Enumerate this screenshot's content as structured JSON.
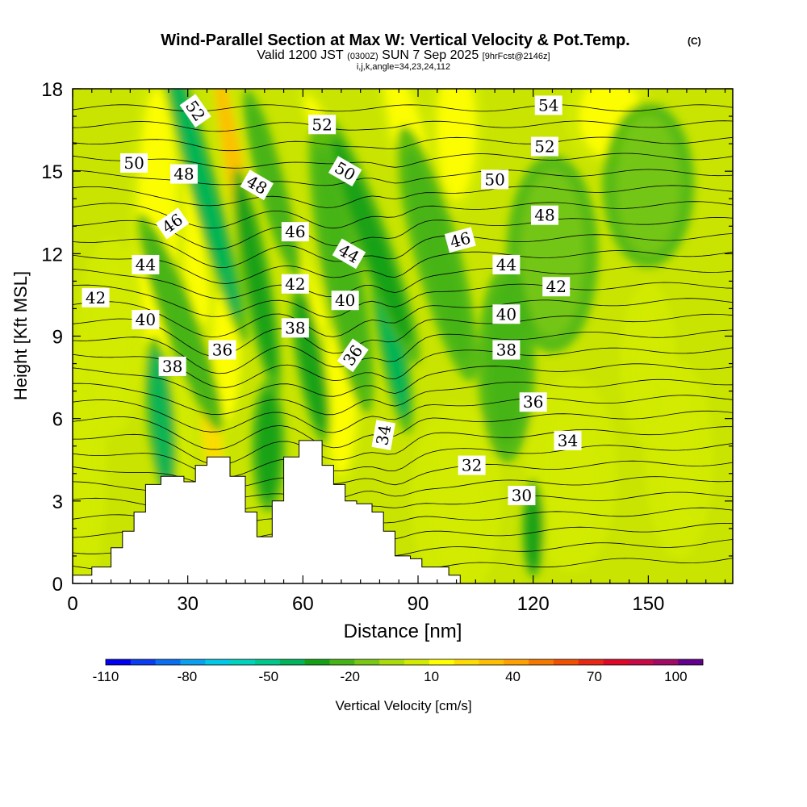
{
  "header": {
    "title": "Wind-Parallel Section at Max W: Vertical Velocity & Pot.Temp.",
    "title_mark": "(C)",
    "subtitle_pre": "Valid 1200 JST",
    "subtitle_utc": "(0300Z)",
    "subtitle_date": "SUN 7 Sep 2025",
    "subtitle_fcst": "[9hrFcst@2146z]",
    "indices": "i,j,k,angle=34,23,24,112"
  },
  "chart_data": {
    "type": "heatmap",
    "xlabel": "Distance [nm]",
    "ylabel": "Height [Kft MSL]",
    "xlim": [
      0,
      172
    ],
    "ylim": [
      0,
      18
    ],
    "xticks": [
      0,
      30,
      60,
      90,
      120,
      150
    ],
    "yticks": [
      0,
      3,
      6,
      9,
      12,
      15,
      18
    ],
    "shaded_field": "Vertical Velocity [cm/s]",
    "contour_field": "Potential temperature (C)",
    "colorbar": {
      "label": "Vertical Velocity [cm/s]",
      "tick_labels": [
        "-110",
        "-80",
        "-50",
        "-20",
        "10",
        "40",
        "70",
        "100"
      ],
      "bounds": [
        -110,
        110
      ],
      "step": 10,
      "colors": [
        "#0000ee",
        "#0a3cf0",
        "#0a6ef0",
        "#0aa0f0",
        "#00c8e6",
        "#00d2be",
        "#00c88c",
        "#00b45a",
        "#14a014",
        "#46b414",
        "#78c814",
        "#aadc0a",
        "#d2eb00",
        "#ffff00",
        "#ffdc00",
        "#ffbe00",
        "#ffa000",
        "#f57800",
        "#f05000",
        "#e62814",
        "#dc0a28",
        "#c80a46",
        "#a00a64",
        "#64008c"
      ]
    },
    "terrain": [
      [
        0,
        0.3
      ],
      [
        5,
        0.3
      ],
      [
        5,
        0.6
      ],
      [
        10,
        0.6
      ],
      [
        10,
        1.3
      ],
      [
        13,
        1.3
      ],
      [
        13,
        1.9
      ],
      [
        16,
        1.9
      ],
      [
        16,
        2.6
      ],
      [
        19,
        2.6
      ],
      [
        19,
        3.6
      ],
      [
        23,
        3.6
      ],
      [
        23,
        3.9
      ],
      [
        29,
        3.9
      ],
      [
        29,
        3.7
      ],
      [
        32,
        3.7
      ],
      [
        32,
        4.3
      ],
      [
        35,
        4.3
      ],
      [
        35,
        4.6
      ],
      [
        41,
        4.6
      ],
      [
        41,
        3.9
      ],
      [
        45,
        3.9
      ],
      [
        45,
        2.6
      ],
      [
        48,
        2.6
      ],
      [
        48,
        1.7
      ],
      [
        52,
        1.7
      ],
      [
        52,
        3.0
      ],
      [
        55,
        3.0
      ],
      [
        55,
        4.6
      ],
      [
        59,
        4.6
      ],
      [
        59,
        5.2
      ],
      [
        65,
        5.2
      ],
      [
        65,
        4.3
      ],
      [
        68,
        4.3
      ],
      [
        68,
        3.6
      ],
      [
        71,
        3.6
      ],
      [
        71,
        3.0
      ],
      [
        74,
        3.0
      ],
      [
        74,
        2.9
      ],
      [
        78,
        2.9
      ],
      [
        78,
        2.6
      ],
      [
        81,
        2.6
      ],
      [
        81,
        1.9
      ],
      [
        84,
        1.9
      ],
      [
        84,
        1.0
      ],
      [
        88,
        1.0
      ],
      [
        88,
        0.9
      ],
      [
        91,
        0.9
      ],
      [
        91,
        0.6
      ],
      [
        98,
        0.6
      ],
      [
        98,
        0.3
      ],
      [
        101,
        0.3
      ],
      [
        101,
        0
      ],
      [
        0,
        0
      ]
    ],
    "updrafts": [
      {
        "x": 43,
        "y": 14.5,
        "w": 2.5,
        "h": 4.5,
        "tilt": -10,
        "value": 40
      },
      {
        "x": 30,
        "y": 13.0,
        "w": 3,
        "h": 4.0,
        "tilt": -10,
        "value": 25
      },
      {
        "x": 36,
        "y": 6.0,
        "w": 2.5,
        "h": 3.0,
        "tilt": -5,
        "value": 35
      },
      {
        "x": 40,
        "y": 8.5,
        "w": 3.5,
        "h": 2.5,
        "tilt": 0,
        "value": 25
      },
      {
        "x": 22,
        "y": 13.0,
        "w": 5,
        "h": 5.0,
        "tilt": 0,
        "value": 20
      },
      {
        "x": 60,
        "y": 11.0,
        "w": 3,
        "h": 4.0,
        "tilt": -15,
        "value": 25
      },
      {
        "x": 55,
        "y": 13.5,
        "w": 2.5,
        "h": 3.0,
        "tilt": -15,
        "value": 20
      },
      {
        "x": 70,
        "y": 15.0,
        "w": 3,
        "h": 3.0,
        "tilt": -25,
        "value": 20
      },
      {
        "x": 88,
        "y": 16.0,
        "w": 4,
        "h": 3.0,
        "tilt": -15,
        "value": 25
      },
      {
        "x": 70,
        "y": 7.0,
        "w": 4,
        "h": 3.0,
        "tilt": 0,
        "value": 20
      },
      {
        "x": 100,
        "y": 16.5,
        "w": 5,
        "h": 2.5,
        "tilt": 0,
        "value": 20
      },
      {
        "x": 140,
        "y": 17.0,
        "w": 8,
        "h": 1.5,
        "tilt": 0,
        "value": 20
      },
      {
        "x": 130,
        "y": 4.0,
        "w": 8,
        "h": 3.0,
        "tilt": 0,
        "value": 15
      },
      {
        "x": 158,
        "y": 4.5,
        "w": 6,
        "h": 3.0,
        "tilt": 0,
        "value": 15
      },
      {
        "x": 150,
        "y": 8.0,
        "w": 5,
        "h": 2.5,
        "tilt": 0,
        "value": 15
      },
      {
        "x": 10,
        "y": 9.0,
        "w": 6,
        "h": 3.0,
        "tilt": 0,
        "value": 15
      },
      {
        "x": 3,
        "y": 4.5,
        "w": 4,
        "h": 4.0,
        "tilt": 0,
        "value": 15
      },
      {
        "x": 26,
        "y": 5.0,
        "w": 4,
        "h": 2.5,
        "tilt": 0,
        "value": 15
      },
      {
        "x": 100,
        "y": 3.0,
        "w": 8,
        "h": 3.0,
        "tilt": 0,
        "value": 10
      }
    ],
    "downdrafts": [
      {
        "x": 34,
        "y": 14.5,
        "w": 2.5,
        "h": 5.0,
        "tilt": -15,
        "value": -40
      },
      {
        "x": 23,
        "y": 6.0,
        "w": 2.5,
        "h": 2.5,
        "tilt": -5,
        "value": -40
      },
      {
        "x": 28,
        "y": 9.5,
        "w": 3,
        "h": 3.5,
        "tilt": -20,
        "value": -20
      },
      {
        "x": 48,
        "y": 11.0,
        "w": 2.5,
        "h": 3.5,
        "tilt": -10,
        "value": -25
      },
      {
        "x": 52,
        "y": 14.5,
        "w": 2.5,
        "h": 3.0,
        "tilt": -15,
        "value": -20
      },
      {
        "x": 51,
        "y": 5.0,
        "w": 3,
        "h": 2.0,
        "tilt": 0,
        "value": -30
      },
      {
        "x": 62,
        "y": 8.0,
        "w": 2.5,
        "h": 2.5,
        "tilt": -10,
        "value": -30
      },
      {
        "x": 70,
        "y": 11.5,
        "w": 3.5,
        "h": 4.5,
        "tilt": -10,
        "value": -20
      },
      {
        "x": 83,
        "y": 9.0,
        "w": 2.5,
        "h": 3.0,
        "tilt": -10,
        "value": -40
      },
      {
        "x": 78,
        "y": 12.5,
        "w": 3,
        "h": 4.0,
        "tilt": -20,
        "value": -25
      },
      {
        "x": 95,
        "y": 12.0,
        "w": 4,
        "h": 4.0,
        "tilt": -15,
        "value": -15
      },
      {
        "x": 120,
        "y": 2.0,
        "w": 2,
        "h": 1.5,
        "tilt": 0,
        "value": -30
      },
      {
        "x": 113,
        "y": 8.0,
        "w": 5,
        "h": 3.0,
        "tilt": 0,
        "value": -15
      },
      {
        "x": 125,
        "y": 12.0,
        "w": 8,
        "h": 3.0,
        "tilt": 0,
        "value": -10
      },
      {
        "x": 150,
        "y": 14.5,
        "w": 8,
        "h": 2.5,
        "tilt": 0,
        "value": -10
      }
    ],
    "contour_labels": [
      {
        "text": "52",
        "x": 32,
        "y": 17.2,
        "angle": 55
      },
      {
        "text": "52",
        "x": 65,
        "y": 16.7,
        "angle": 0
      },
      {
        "text": "54",
        "x": 124,
        "y": 17.4,
        "angle": 0
      },
      {
        "text": "52",
        "x": 123,
        "y": 15.9,
        "angle": 0
      },
      {
        "text": "50",
        "x": 16,
        "y": 15.3,
        "angle": 0
      },
      {
        "text": "48",
        "x": 29,
        "y": 14.9,
        "angle": 0
      },
      {
        "text": "48",
        "x": 48,
        "y": 14.5,
        "angle": 30
      },
      {
        "text": "50",
        "x": 71,
        "y": 15.0,
        "angle": 30
      },
      {
        "text": "50",
        "x": 110,
        "y": 14.7,
        "angle": 0
      },
      {
        "text": "48",
        "x": 123,
        "y": 13.4,
        "angle": 0
      },
      {
        "text": "46",
        "x": 26,
        "y": 13.1,
        "angle": -35
      },
      {
        "text": "46",
        "x": 58,
        "y": 12.8,
        "angle": 0
      },
      {
        "text": "44",
        "x": 72,
        "y": 12.0,
        "angle": 30
      },
      {
        "text": "46",
        "x": 101,
        "y": 12.5,
        "angle": -15
      },
      {
        "text": "44",
        "x": 19,
        "y": 11.6,
        "angle": 0
      },
      {
        "text": "44",
        "x": 113,
        "y": 11.6,
        "angle": 0
      },
      {
        "text": "42",
        "x": 6,
        "y": 10.4,
        "angle": 0
      },
      {
        "text": "42",
        "x": 58,
        "y": 10.9,
        "angle": 0
      },
      {
        "text": "42",
        "x": 126,
        "y": 10.8,
        "angle": 0
      },
      {
        "text": "40",
        "x": 19,
        "y": 9.6,
        "angle": 0
      },
      {
        "text": "40",
        "x": 71,
        "y": 10.3,
        "angle": 0
      },
      {
        "text": "40",
        "x": 113,
        "y": 9.8,
        "angle": 0
      },
      {
        "text": "38",
        "x": 58,
        "y": 9.3,
        "angle": 0
      },
      {
        "text": "36",
        "x": 39,
        "y": 8.5,
        "angle": 0
      },
      {
        "text": "36",
        "x": 73,
        "y": 8.3,
        "angle": -55
      },
      {
        "text": "38",
        "x": 26,
        "y": 7.9,
        "angle": 0
      },
      {
        "text": "38",
        "x": 113,
        "y": 8.5,
        "angle": 0
      },
      {
        "text": "36",
        "x": 120,
        "y": 6.6,
        "angle": 0
      },
      {
        "text": "34",
        "x": 81,
        "y": 5.4,
        "angle": -80
      },
      {
        "text": "34",
        "x": 129,
        "y": 5.2,
        "angle": 0
      },
      {
        "text": "32",
        "x": 104,
        "y": 4.3,
        "angle": 0
      },
      {
        "text": "30",
        "x": 117,
        "y": 3.2,
        "angle": 0
      }
    ]
  }
}
